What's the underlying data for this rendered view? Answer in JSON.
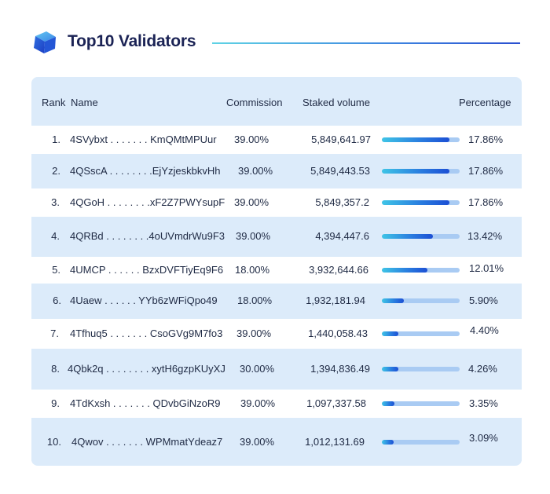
{
  "title": "Top10 Validators",
  "colors": {
    "accent": "#2a7fe0",
    "title": "#1b2355",
    "card": "#dcebfa",
    "track": "#a9cbf3"
  },
  "columns": {
    "rank": "Rank",
    "name": "Name",
    "commission": "Commission",
    "staked": "Staked volume",
    "percentage": "Percentage"
  },
  "chart_data": {
    "type": "table",
    "title": "Top10 Validators",
    "columns": [
      "Rank",
      "Name",
      "Commission",
      "Staked volume",
      "Percentage"
    ],
    "rows": [
      {
        "rank": "1.",
        "name": "4SVybxt . . . . . . . KmQMtMPUur",
        "commission": "39.00%",
        "staked": "5,849,641.97",
        "percentage": "17.86%",
        "pct": 17.86
      },
      {
        "rank": "2.",
        "name": "4QSscA . . . . . . . .EjYzjeskbkvHh",
        "commission": "39.00%",
        "staked": "5,849,443.53",
        "percentage": "17.86%",
        "pct": 17.86
      },
      {
        "rank": "3.",
        "name": "4QGoH . . . . . . . .xF2Z7PWYsupF",
        "commission": "39.00%",
        "staked": "5,849,357.2",
        "percentage": "17.86%",
        "pct": 17.86
      },
      {
        "rank": "4.",
        "name": "4QRBd . . . . . . . .4oUVmdrWu9F3",
        "commission": "39.00%",
        "staked": "4,394,447.6",
        "percentage": "13.42%",
        "pct": 13.42
      },
      {
        "rank": "5.",
        "name": "4UMCP . . . . . .   BzxDVFTiyEq9F6",
        "commission": "18.00%",
        "staked": "3,932,644.66",
        "percentage": "12.01%",
        "pct": 12.01
      },
      {
        "rank": "6.",
        "name": "4Uaew . . . . . .   YYb6zWFiQpo49",
        "commission": "18.00%",
        "staked": "1,932,181.94",
        "percentage": "5.90%",
        "pct": 5.9
      },
      {
        "rank": "7.",
        "name": "4Tfhuq5 . . . . . . . CsoGVg9M7fo3",
        "commission": "39.00%",
        "staked": "1,440,058.43",
        "percentage": "4.40%",
        "pct": 4.4
      },
      {
        "rank": "8.",
        "name": "4Qbk2q . . . . . . . .  xytH6gzpKUyXJ",
        "commission": "30.00%",
        "staked": "1,394,836.49",
        "percentage": "4.26%",
        "pct": 4.26
      },
      {
        "rank": "9.",
        "name": "4TdKxsh . . . . . . .  QDvbGiNzoR9",
        "commission": "39.00%",
        "staked": "1,097,337.58",
        "percentage": "3.35%",
        "pct": 3.35
      },
      {
        "rank": "10.",
        "name": "4Qwov . . . . . . . WPMmatYdeaz7",
        "commission": "39.00%",
        "staked": "1,012,131.69",
        "percentage": "3.09%",
        "pct": 3.09
      }
    ]
  }
}
